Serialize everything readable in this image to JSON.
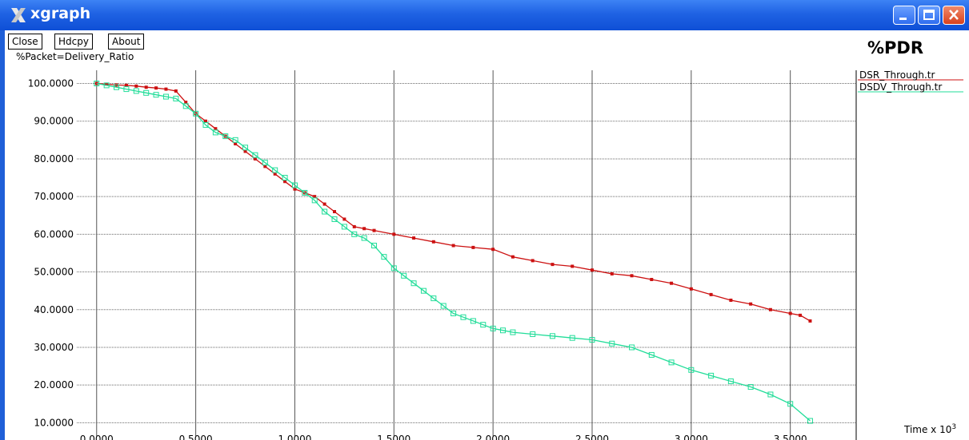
{
  "window": {
    "title": "xgraph"
  },
  "toolbar": {
    "close_label": "Close",
    "hdcpy_label": "Hdcpy",
    "about_label": "About"
  },
  "chart_data": {
    "type": "line",
    "title": "%PDR",
    "ylabel": "%Packet=Delivery_Ratio",
    "xlabel": "Time x 10",
    "xlabel_exponent": "3",
    "xlim": [
      -0.1,
      3.8
    ],
    "ylim": [
      8.6,
      103.5
    ],
    "x_ticks": [
      "0.0000",
      "0.5000",
      "1.0000",
      "1.5000",
      "2.0000",
      "2.5000",
      "3.0000",
      "3.5000"
    ],
    "y_ticks": [
      "10.0000",
      "20.0000",
      "30.0000",
      "40.0000",
      "50.0000",
      "60.0000",
      "70.0000",
      "80.0000",
      "90.0000",
      "100.0000"
    ],
    "grid": true,
    "legend_position": "right",
    "series": [
      {
        "name": "DSR_Through.tr",
        "color": "#cc1111",
        "marker": "dot",
        "x": [
          0,
          0.05,
          0.1,
          0.15,
          0.2,
          0.25,
          0.3,
          0.35,
          0.4,
          0.45,
          0.5,
          0.55,
          0.6,
          0.65,
          0.7,
          0.75,
          0.8,
          0.85,
          0.9,
          0.95,
          1.0,
          1.05,
          1.1,
          1.15,
          1.2,
          1.25,
          1.3,
          1.35,
          1.4,
          1.5,
          1.6,
          1.7,
          1.8,
          1.9,
          2.0,
          2.1,
          2.2,
          2.3,
          2.4,
          2.5,
          2.6,
          2.7,
          2.8,
          2.9,
          3.0,
          3.1,
          3.2,
          3.3,
          3.4,
          3.5,
          3.55,
          3.6
        ],
        "y": [
          100,
          99.8,
          99.6,
          99.5,
          99.3,
          99,
          98.8,
          98.5,
          98,
          95,
          92,
          90,
          88,
          86,
          84,
          82,
          80,
          78,
          76,
          74,
          72,
          71,
          70,
          68,
          66,
          64,
          62,
          61.5,
          61,
          60,
          59,
          58,
          57,
          56.5,
          56,
          54,
          53,
          52,
          51.5,
          50.5,
          49.5,
          49,
          48,
          47,
          45.5,
          44,
          42.5,
          41.5,
          40,
          39,
          38.5,
          37
        ]
      },
      {
        "name": "DSDV_Through.tr",
        "color": "#22dd99",
        "marker": "square",
        "x": [
          0,
          0.05,
          0.1,
          0.15,
          0.2,
          0.25,
          0.3,
          0.35,
          0.4,
          0.45,
          0.5,
          0.55,
          0.6,
          0.65,
          0.7,
          0.75,
          0.8,
          0.85,
          0.9,
          0.95,
          1.0,
          1.05,
          1.1,
          1.15,
          1.2,
          1.25,
          1.3,
          1.35,
          1.4,
          1.45,
          1.5,
          1.55,
          1.6,
          1.65,
          1.7,
          1.75,
          1.8,
          1.85,
          1.9,
          1.95,
          2.0,
          2.05,
          2.1,
          2.2,
          2.3,
          2.4,
          2.5,
          2.6,
          2.7,
          2.8,
          2.9,
          3.0,
          3.1,
          3.2,
          3.3,
          3.4,
          3.5,
          3.6
        ],
        "y": [
          100,
          99.5,
          99,
          98.5,
          98,
          97.5,
          97,
          96.5,
          96,
          94,
          92,
          89,
          87,
          86,
          85,
          83,
          81,
          79,
          77,
          75,
          73,
          71,
          69,
          66,
          64,
          62,
          60,
          59,
          57,
          54,
          51,
          49,
          47,
          45,
          43,
          41,
          39,
          38,
          37,
          36,
          35,
          34.5,
          34,
          33.5,
          33,
          32.5,
          32,
          31,
          30,
          28,
          26,
          24,
          22.5,
          21,
          19.5,
          17.5,
          15,
          10.5
        ]
      }
    ]
  }
}
